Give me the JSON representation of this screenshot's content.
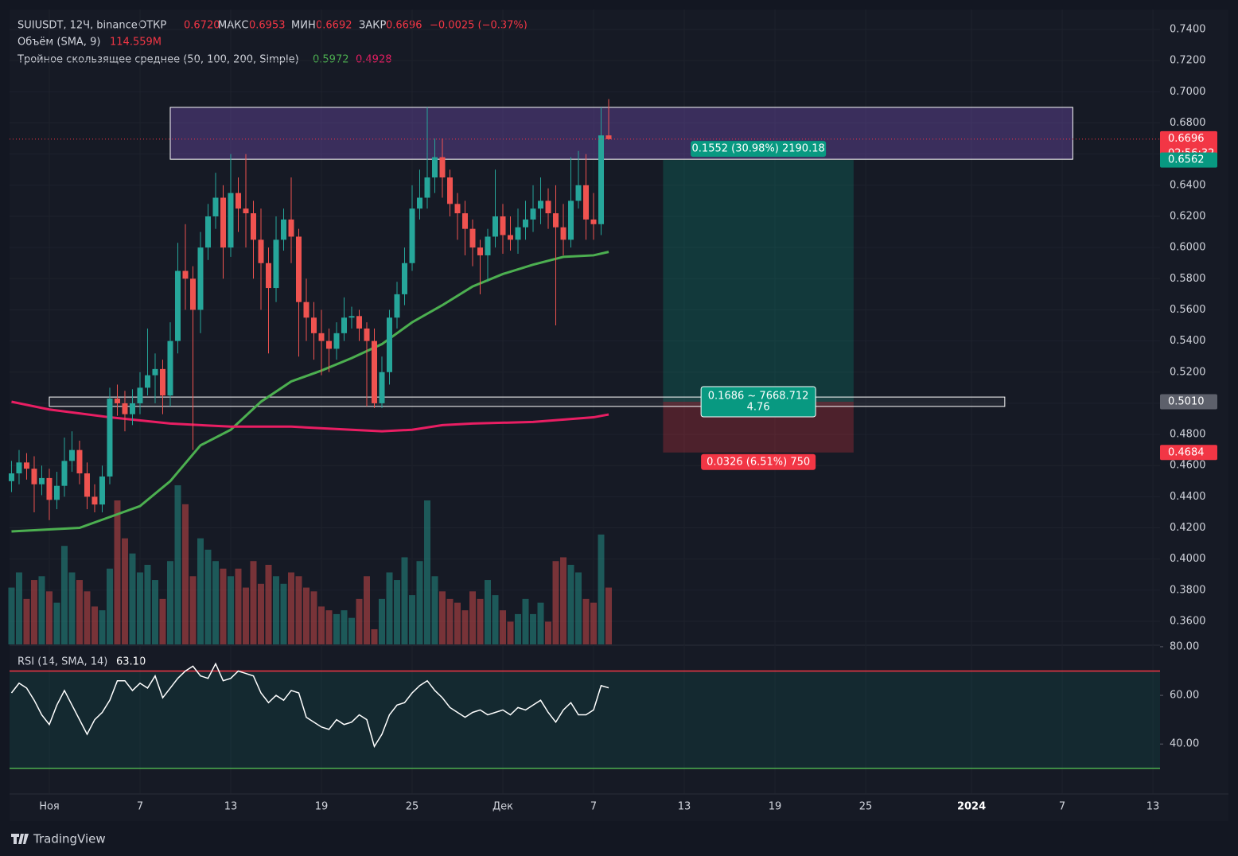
{
  "chart_data": {
    "type": "candlestick",
    "title": "SUIUSDT, 12Ч, binance",
    "legend": {
      "open_label": "ОТКР",
      "open": "0.6720",
      "high_label": "МАКС",
      "high": "0.6953",
      "low_label": "МИН",
      "low": "0.6692",
      "close_label": "ЗАКР",
      "close": "0.6696",
      "change": "−0.0025 (−0.37%)",
      "volume_label": "Объём (SMA, 9)",
      "volume": "114.559M",
      "ma_label": "Тройное скользящее среднее (50, 100, 200, Simple)",
      "ma50": "0.5972",
      "ma200": "0.4928",
      "rsi_label": "RSI (14, SMA, 14)",
      "rsi": "63.10"
    },
    "xlim": [
      -2.63,
      73.47
    ],
    "ylim": [
      0.3452,
      0.7528
    ],
    "xticks": [
      {
        "value": 0,
        "label": "Ноя"
      },
      {
        "value": 6,
        "label": "7"
      },
      {
        "value": 12,
        "label": "13"
      },
      {
        "value": 18,
        "label": "19"
      },
      {
        "value": 24,
        "label": "25"
      },
      {
        "value": 30,
        "label": "Дек"
      },
      {
        "value": 36,
        "label": "7"
      },
      {
        "value": 42,
        "label": "13"
      },
      {
        "value": 48,
        "label": "19"
      },
      {
        "value": 54,
        "label": "25"
      },
      {
        "value": 61,
        "label": "2024"
      },
      {
        "value": 67,
        "label": "7"
      },
      {
        "value": 73,
        "label": "13"
      }
    ],
    "yticks": [
      {
        "value": 0.36,
        "label": "0.3600"
      },
      {
        "value": 0.38,
        "label": "0.3800"
      },
      {
        "value": 0.4,
        "label": "0.4000"
      },
      {
        "value": 0.42,
        "label": "0.4200"
      },
      {
        "value": 0.44,
        "label": "0.4400"
      },
      {
        "value": 0.46,
        "label": "0.4600"
      },
      {
        "value": 0.48,
        "label": "0.4800"
      },
      {
        "value": 0.5,
        "label": "0.5000"
      },
      {
        "value": 0.52,
        "label": "0.5200"
      },
      {
        "value": 0.54,
        "label": "0.5400"
      },
      {
        "value": 0.56,
        "label": "0.5600"
      },
      {
        "value": 0.58,
        "label": "0.5800"
      },
      {
        "value": 0.6,
        "label": "0.6000"
      },
      {
        "value": 0.62,
        "label": "0.6200"
      },
      {
        "value": 0.64,
        "label": "0.6400"
      },
      {
        "value": 0.66,
        "label": "0.6600"
      },
      {
        "value": 0.68,
        "label": "0.6800"
      },
      {
        "value": 0.7,
        "label": "0.7000"
      },
      {
        "value": 0.72,
        "label": "0.7200"
      },
      {
        "value": 0.74,
        "label": "0.7400"
      }
    ],
    "up_color": "#26a69a",
    "down_color": "#ef5350",
    "x": [
      -2.5,
      -2,
      -1.5,
      -1,
      -0.5,
      0,
      0.5,
      1,
      1.5,
      2,
      2.5,
      3,
      3.5,
      4,
      4.5,
      5,
      5.5,
      6,
      6.5,
      7,
      7.5,
      8,
      8.5,
      9,
      9.5,
      10,
      10.5,
      11,
      11.5,
      12,
      12.5,
      13,
      13.5,
      14,
      14.5,
      15,
      15.5,
      16,
      16.5,
      17,
      17.5,
      18,
      18.5,
      19,
      19.5,
      20,
      20.5,
      21,
      21.5,
      22,
      22.5,
      23,
      23.5,
      24,
      24.5,
      25,
      25.5,
      26,
      26.5,
      27,
      27.5,
      28,
      28.5,
      29,
      29.5,
      30,
      30.5,
      31,
      31.5,
      32,
      32.5,
      33,
      33.5,
      34,
      34.5,
      35,
      35.5,
      36,
      36.5,
      37
    ],
    "open": [
      0.45,
      0.455,
      0.462,
      0.458,
      0.448,
      0.452,
      0.438,
      0.447,
      0.463,
      0.47,
      0.455,
      0.44,
      0.435,
      0.453,
      0.503,
      0.5,
      0.493,
      0.5,
      0.51,
      0.518,
      0.522,
      0.505,
      0.54,
      0.585,
      0.58,
      0.56,
      0.6,
      0.62,
      0.632,
      0.6,
      0.635,
      0.625,
      0.622,
      0.605,
      0.59,
      0.574,
      0.605,
      0.618,
      0.607,
      0.565,
      0.555,
      0.545,
      0.54,
      0.535,
      0.545,
      0.555,
      0.556,
      0.548,
      0.54,
      0.5,
      0.52,
      0.555,
      0.57,
      0.59,
      0.625,
      0.632,
      0.645,
      0.658,
      0.645,
      0.628,
      0.622,
      0.612,
      0.6,
      0.595,
      0.607,
      0.62,
      0.608,
      0.605,
      0.613,
      0.618,
      0.625,
      0.63,
      0.622,
      0.613,
      0.605,
      0.63,
      0.64,
      0.618,
      0.615,
      0.672
    ],
    "high": [
      0.463,
      0.47,
      0.468,
      0.466,
      0.46,
      0.458,
      0.456,
      0.478,
      0.482,
      0.476,
      0.462,
      0.448,
      0.46,
      0.51,
      0.512,
      0.508,
      0.509,
      0.52,
      0.548,
      0.532,
      0.528,
      0.552,
      0.603,
      0.615,
      0.588,
      0.61,
      0.628,
      0.648,
      0.64,
      0.66,
      0.645,
      0.66,
      0.63,
      0.625,
      0.6,
      0.62,
      0.625,
      0.645,
      0.612,
      0.58,
      0.565,
      0.56,
      0.548,
      0.552,
      0.568,
      0.562,
      0.56,
      0.552,
      0.548,
      0.53,
      0.56,
      0.578,
      0.6,
      0.64,
      0.65,
      0.69,
      0.67,
      0.67,
      0.65,
      0.635,
      0.63,
      0.618,
      0.605,
      0.612,
      0.65,
      0.628,
      0.62,
      0.625,
      0.63,
      0.64,
      0.645,
      0.638,
      0.64,
      0.628,
      0.658,
      0.662,
      0.66,
      0.635,
      0.69,
      0.6953
    ],
    "low": [
      0.443,
      0.448,
      0.451,
      0.43,
      0.441,
      0.425,
      0.432,
      0.44,
      0.456,
      0.448,
      0.432,
      0.43,
      0.43,
      0.448,
      0.492,
      0.482,
      0.486,
      0.493,
      0.505,
      0.5,
      0.493,
      0.498,
      0.532,
      0.56,
      0.47,
      0.545,
      0.592,
      0.612,
      0.58,
      0.594,
      0.61,
      0.6,
      0.58,
      0.56,
      0.532,
      0.565,
      0.598,
      0.59,
      0.53,
      0.54,
      0.528,
      0.518,
      0.52,
      0.528,
      0.54,
      0.548,
      0.54,
      0.498,
      0.497,
      0.497,
      0.512,
      0.548,
      0.563,
      0.585,
      0.618,
      0.625,
      0.635,
      0.632,
      0.62,
      0.605,
      0.595,
      0.588,
      0.57,
      0.578,
      0.6,
      0.596,
      0.598,
      0.596,
      0.605,
      0.61,
      0.615,
      0.612,
      0.55,
      0.595,
      0.6,
      0.625,
      0.605,
      0.605,
      0.608,
      0.6692
    ],
    "close": [
      0.455,
      0.462,
      0.458,
      0.448,
      0.452,
      0.438,
      0.447,
      0.463,
      0.47,
      0.455,
      0.44,
      0.435,
      0.453,
      0.503,
      0.5,
      0.493,
      0.5,
      0.51,
      0.518,
      0.522,
      0.505,
      0.54,
      0.585,
      0.58,
      0.56,
      0.6,
      0.62,
      0.632,
      0.6,
      0.635,
      0.625,
      0.622,
      0.605,
      0.59,
      0.574,
      0.605,
      0.618,
      0.607,
      0.565,
      0.555,
      0.545,
      0.54,
      0.535,
      0.545,
      0.555,
      0.556,
      0.548,
      0.54,
      0.5,
      0.52,
      0.555,
      0.57,
      0.59,
      0.625,
      0.632,
      0.645,
      0.658,
      0.645,
      0.628,
      0.622,
      0.612,
      0.6,
      0.595,
      0.607,
      0.62,
      0.608,
      0.605,
      0.613,
      0.618,
      0.625,
      0.63,
      0.622,
      0.613,
      0.605,
      0.63,
      0.64,
      0.618,
      0.615,
      0.672,
      0.6696
    ],
    "volume": [
      75,
      95,
      60,
      85,
      90,
      70,
      55,
      130,
      95,
      85,
      70,
      50,
      45,
      100,
      190,
      140,
      120,
      95,
      105,
      85,
      60,
      110,
      210,
      185,
      90,
      140,
      125,
      110,
      100,
      90,
      100,
      75,
      110,
      80,
      105,
      90,
      80,
      95,
      90,
      75,
      70,
      50,
      45,
      40,
      45,
      35,
      60,
      90,
      20,
      60,
      95,
      85,
      115,
      65,
      110,
      190,
      90,
      70,
      60,
      55,
      45,
      70,
      60,
      85,
      65,
      45,
      30,
      40,
      60,
      40,
      55,
      30,
      110,
      115,
      105,
      95,
      60,
      55,
      145,
      75
    ],
    "rsi": [
      61,
      65,
      63,
      58,
      52,
      48,
      56,
      62,
      56,
      50,
      44,
      50,
      53,
      58,
      66,
      66,
      62,
      65,
      63,
      68,
      59,
      63,
      67,
      70,
      72,
      68,
      67,
      73,
      66,
      67,
      70,
      69,
      68,
      61,
      57,
      60,
      58,
      62,
      61,
      51,
      49,
      47,
      46,
      50,
      48,
      49,
      52,
      50,
      39,
      44,
      52,
      56,
      57,
      61,
      64,
      66,
      62,
      59,
      55,
      53,
      51,
      53,
      54,
      52,
      53,
      54,
      52,
      55,
      54,
      56,
      58,
      53,
      49,
      54,
      57,
      52,
      52,
      54,
      64,
      63.1
    ],
    "rsi_ylim": [
      19.8,
      80.3
    ],
    "rsi_yticks": [
      {
        "value": 80,
        "label": "80.00"
      },
      {
        "value": 60,
        "label": "60.00"
      },
      {
        "value": 40,
        "label": "40.00"
      }
    ],
    "rsi_bands": [
      70,
      30
    ],
    "ma50": {
      "color": "#4caf50",
      "x": [
        -2.5,
        0,
        2,
        4,
        6,
        8,
        10,
        12,
        14,
        16,
        18,
        20,
        22,
        24,
        26,
        28,
        30,
        32,
        34,
        36,
        37
      ],
      "values": [
        0.4177,
        0.419,
        0.42,
        0.427,
        0.434,
        0.45,
        0.473,
        0.483,
        0.501,
        0.514,
        0.521,
        0.529,
        0.538,
        0.552,
        0.563,
        0.575,
        0.583,
        0.589,
        0.594,
        0.595,
        0.5972
      ]
    },
    "ma200": {
      "color": "#e91e63",
      "x": [
        -2.5,
        0,
        4,
        8,
        12,
        16,
        20,
        22,
        24,
        26,
        28,
        32,
        36,
        37
      ],
      "values": [
        0.501,
        0.496,
        0.491,
        0.487,
        0.485,
        0.485,
        0.483,
        0.482,
        0.483,
        0.486,
        0.487,
        0.488,
        0.491,
        0.4928
      ]
    },
    "resistance_box": {
      "x": [
        8,
        67.7
      ],
      "y": [
        0.6567,
        0.69
      ]
    },
    "support_box": {
      "x": [
        0,
        63.2
      ],
      "y": [
        0.498,
        0.504
      ]
    },
    "position": {
      "x": [
        40.6,
        53.2
      ],
      "entry": 0.501,
      "target": 0.6562,
      "stop": 0.4684,
      "target_text": "0.1552 (30.98%) 2190.18",
      "entry_text": "0.1686 ~ 7668.712",
      "ratio_text": "4.76",
      "stop_text": "0.0326 (6.51%) 750"
    },
    "price_tags": [
      {
        "value": 0.6696,
        "label": "0.6696",
        "sub": "02:56:32",
        "color": "#f23645"
      },
      {
        "value": 0.6562,
        "label": "0.6562",
        "color": "#089981"
      },
      {
        "value": 0.501,
        "label": "0.5010",
        "color": "#5d606b"
      },
      {
        "value": 0.4684,
        "label": "0.4684",
        "color": "#f23645"
      }
    ],
    "brand": "TradingView"
  }
}
